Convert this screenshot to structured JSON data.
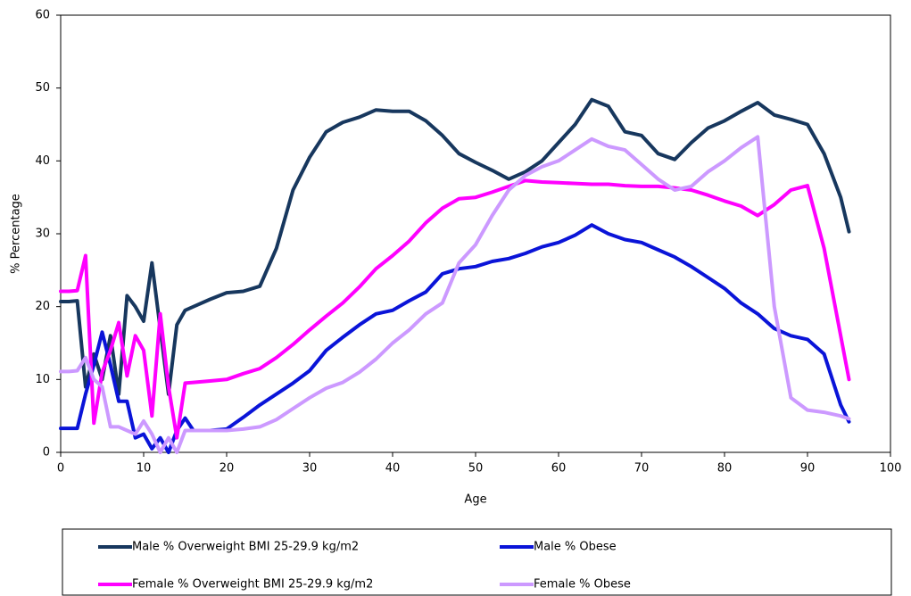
{
  "chart_data": {
    "type": "line",
    "x_label": "Age",
    "y_label": "% Percentage",
    "xlim": [
      0,
      100
    ],
    "ylim": [
      0,
      60
    ],
    "xticks": [
      0,
      10,
      20,
      30,
      40,
      50,
      60,
      70,
      80,
      90,
      100
    ],
    "yticks": [
      0,
      10,
      20,
      30,
      40,
      50,
      60
    ],
    "x": [
      0,
      1,
      2,
      3,
      4,
      5,
      6,
      7,
      8,
      9,
      10,
      11,
      12,
      13,
      14,
      15,
      16,
      18,
      20,
      22,
      24,
      26,
      28,
      30,
      32,
      34,
      36,
      38,
      40,
      42,
      44,
      46,
      48,
      50,
      52,
      54,
      56,
      58,
      60,
      62,
      64,
      66,
      68,
      70,
      72,
      74,
      76,
      78,
      80,
      82,
      84,
      86,
      88,
      90,
      92,
      94,
      95
    ],
    "series": [
      {
        "name": "Male % Overweight BMI 25-29.9 kg/m2",
        "color": "#17375e",
        "values": [
          20.7,
          20.7,
          20.8,
          9,
          13.5,
          10,
          16,
          8,
          21.5,
          20,
          18,
          26,
          17,
          8,
          17.5,
          19.5,
          20,
          21,
          21.9,
          22.1,
          22.8,
          28,
          36,
          40.5,
          44,
          45.3,
          46,
          47,
          46.8,
          46.8,
          45.5,
          43.5,
          41,
          39.8,
          38.7,
          37.5,
          38.5,
          40,
          42.5,
          45,
          48.4,
          47.5,
          44,
          43.5,
          41,
          40.2,
          42.5,
          44.5,
          45.5,
          46.8,
          48,
          46.3,
          45.7,
          45,
          41,
          35,
          30.3
        ]
      },
      {
        "name": "Male % Obese",
        "color": "#0a14d8",
        "values": [
          3.3,
          3.3,
          3.3,
          8,
          12,
          16.5,
          12,
          7,
          7,
          2,
          2.5,
          0.5,
          2,
          0,
          3,
          4.7,
          3,
          3,
          3.2,
          4.8,
          6.5,
          8,
          9.5,
          11.2,
          14,
          15.8,
          17.5,
          19,
          19.5,
          20.8,
          22,
          24.5,
          25.2,
          25.5,
          26.2,
          26.6,
          27.3,
          28.2,
          28.8,
          29.8,
          31.2,
          30,
          29.2,
          28.8,
          27.8,
          26.8,
          25.5,
          24,
          22.5,
          20.5,
          19,
          17,
          16,
          15.5,
          13.5,
          6.5,
          4.2
        ]
      },
      {
        "name": "Female % Overweight BMI 25-29.9 kg/m2",
        "color": "#ff00ff",
        "values": [
          22.1,
          22.1,
          22.2,
          27,
          4,
          11,
          14,
          17.8,
          10.5,
          16,
          14,
          5,
          19,
          9,
          2,
          9.5,
          9.6,
          9.8,
          10,
          10.8,
          11.5,
          13,
          14.8,
          16.8,
          18.7,
          20.5,
          22.7,
          25.2,
          27,
          29,
          31.5,
          33.5,
          34.8,
          35,
          35.7,
          36.5,
          37.3,
          37.1,
          37,
          36.9,
          36.8,
          36.8,
          36.6,
          36.5,
          36.5,
          36.3,
          36,
          35.3,
          34.5,
          33.8,
          32.5,
          34,
          36,
          36.6,
          28,
          16,
          10
        ]
      },
      {
        "name": "Female % Obese",
        "color": "#cc99ff",
        "values": [
          11.1,
          11.1,
          11.2,
          13,
          10,
          9,
          3.5,
          3.5,
          3,
          2.5,
          4.3,
          2.5,
          0,
          2,
          0,
          3,
          3,
          3,
          3,
          3.2,
          3.5,
          4.5,
          6,
          7.5,
          8.8,
          9.6,
          11,
          12.8,
          15,
          16.8,
          19,
          20.5,
          26,
          28.5,
          32.5,
          36,
          38,
          39.2,
          40,
          41.5,
          43,
          42,
          41.5,
          39.5,
          37.5,
          36,
          36.5,
          38.5,
          40,
          41.8,
          43.3,
          20,
          7.5,
          5.8,
          5.5,
          5,
          4.6
        ]
      }
    ]
  }
}
